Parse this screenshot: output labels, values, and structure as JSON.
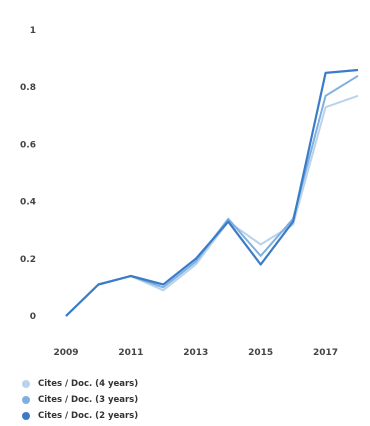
{
  "chart_data": {
    "type": "line",
    "x": [
      2009,
      2010,
      2011,
      2012,
      2013,
      2014,
      2015,
      2016,
      2017,
      2018
    ],
    "xticks": [
      "2009",
      "2011",
      "2013",
      "2015",
      "2017"
    ],
    "yticks": [
      "0",
      "0.2",
      "0.4",
      "0.6",
      "0.8",
      "1"
    ],
    "ylim": [
      0,
      1
    ],
    "grid": false,
    "legend_placement": "bottom-left",
    "series": [
      {
        "name": "Cites / Doc. (4 years)",
        "color": "#b9d3ec",
        "values": [
          0.0,
          0.11,
          0.14,
          0.09,
          0.18,
          0.33,
          0.25,
          0.32,
          0.73,
          0.77
        ]
      },
      {
        "name": "Cites / Doc. (3 years)",
        "color": "#7fb0e0",
        "values": [
          0.0,
          0.11,
          0.14,
          0.1,
          0.19,
          0.34,
          0.21,
          0.34,
          0.77,
          0.84
        ]
      },
      {
        "name": "Cites / Doc. (2 years)",
        "color": "#3b7cc9",
        "values": [
          0.0,
          0.11,
          0.14,
          0.11,
          0.2,
          0.33,
          0.18,
          0.33,
          0.85,
          0.86
        ]
      }
    ]
  }
}
